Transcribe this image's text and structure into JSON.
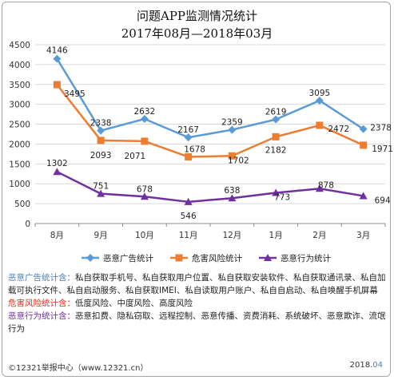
{
  "title_line1": "问题APP监测情况统计",
  "title_line2": "2017年08月—2018年03月",
  "chart_data": {
    "type": "line",
    "categories": [
      "8月",
      "9月",
      "10月",
      "11月",
      "12月",
      "1月",
      "2月",
      "3月"
    ],
    "ylim": [
      0,
      4500
    ],
    "yticks": [
      0,
      500,
      1000,
      1500,
      2000,
      2500,
      3000,
      3500,
      4000,
      4500
    ],
    "grid": true,
    "legend_position": "bottom",
    "series": [
      {
        "name": "恶意广告统计",
        "color": "#5b9bd5",
        "marker": "diamond",
        "values": [
          4146,
          2338,
          2632,
          2167,
          2359,
          2619,
          3095,
          2378
        ]
      },
      {
        "name": "危害风险统计",
        "color": "#ed7d31",
        "marker": "square",
        "values": [
          3495,
          2093,
          2071,
          1678,
          1702,
          2182,
          2472,
          1971
        ]
      },
      {
        "name": "恶意行为统计",
        "color": "#7030a0",
        "marker": "triangle",
        "values": [
          1302,
          751,
          678,
          546,
          638,
          773,
          878,
          694
        ]
      }
    ]
  },
  "notes": {
    "ad_label": "恶意广告统计含：",
    "ad_text": "私自获取手机号、私自获取用户位置、私自获取安装软件、私自获取通讯录、私自加载可执行文件、私自启动服务、私自获取IMEI、私自读取用户账户、私自自启动、私自唤醒手机屏幕",
    "risk_label": "危害风险统计含：",
    "risk_text": "低度风险、中度风险、高度风险",
    "behavior_label": "恶意行为统计含：",
    "behavior_text": "恶意扣费、隐私窃取、远程控制、恶意传播、资费消耗、系统破坏、恶意欺诈、流氓行为"
  },
  "footer": {
    "left": "©12321举报中心（www.12321.cn）",
    "right_year": "2018.",
    "right_month": "04"
  }
}
